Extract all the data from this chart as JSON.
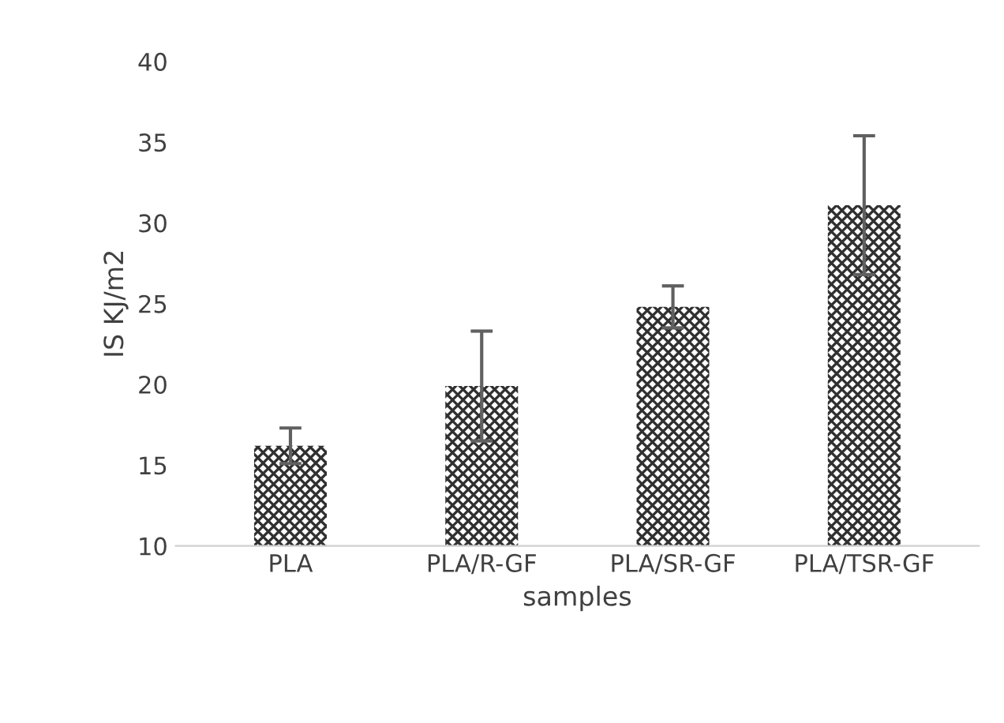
{
  "chart_data": {
    "type": "bar",
    "xlabel": "samples",
    "ylabel": "IS KJ/m2",
    "categories": [
      "PLA",
      "PLA/R-GF",
      "PLA/SR-GF",
      "PLA/TSR-GF"
    ],
    "values": [
      16.2,
      19.9,
      24.8,
      31.1
    ],
    "errors": [
      1.1,
      3.4,
      1.3,
      4.3
    ],
    "color": "#303030",
    "ylim": [
      10,
      40
    ],
    "yticks": [
      10,
      15,
      20,
      25,
      30,
      35,
      40
    ],
    "grid": false
  }
}
